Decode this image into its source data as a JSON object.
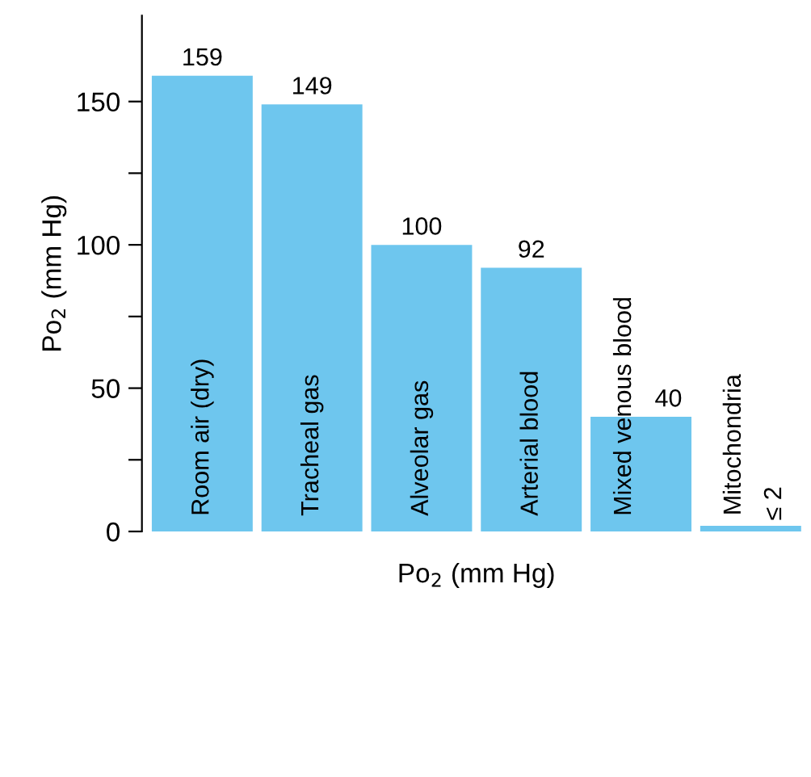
{
  "chart_data": {
    "type": "bar",
    "ylabel": "Po$_{2}$ (mm Hg)",
    "xlabel": "Po$_{2}$ (mm Hg)",
    "categories": [
      "Room air (dry)",
      "Tracheal gas",
      "Alveolar gas",
      "Arterial blood",
      "Mixed venous blood",
      "Mitochondria"
    ],
    "values": [
      159,
      149,
      100,
      92,
      40,
      2
    ],
    "value_labels": [
      "159",
      "149",
      "100",
      "92",
      "40",
      "≤ 2"
    ],
    "color": "#6ec6ee",
    "ylim": [
      0,
      180
    ],
    "yticks": [
      0,
      {
        "value": 25,
        "label": null
      },
      50,
      {
        "value": 75,
        "label": null
      },
      100,
      {
        "value": 125,
        "label": null
      },
      150
    ],
    "grid": false,
    "legend": false
  }
}
